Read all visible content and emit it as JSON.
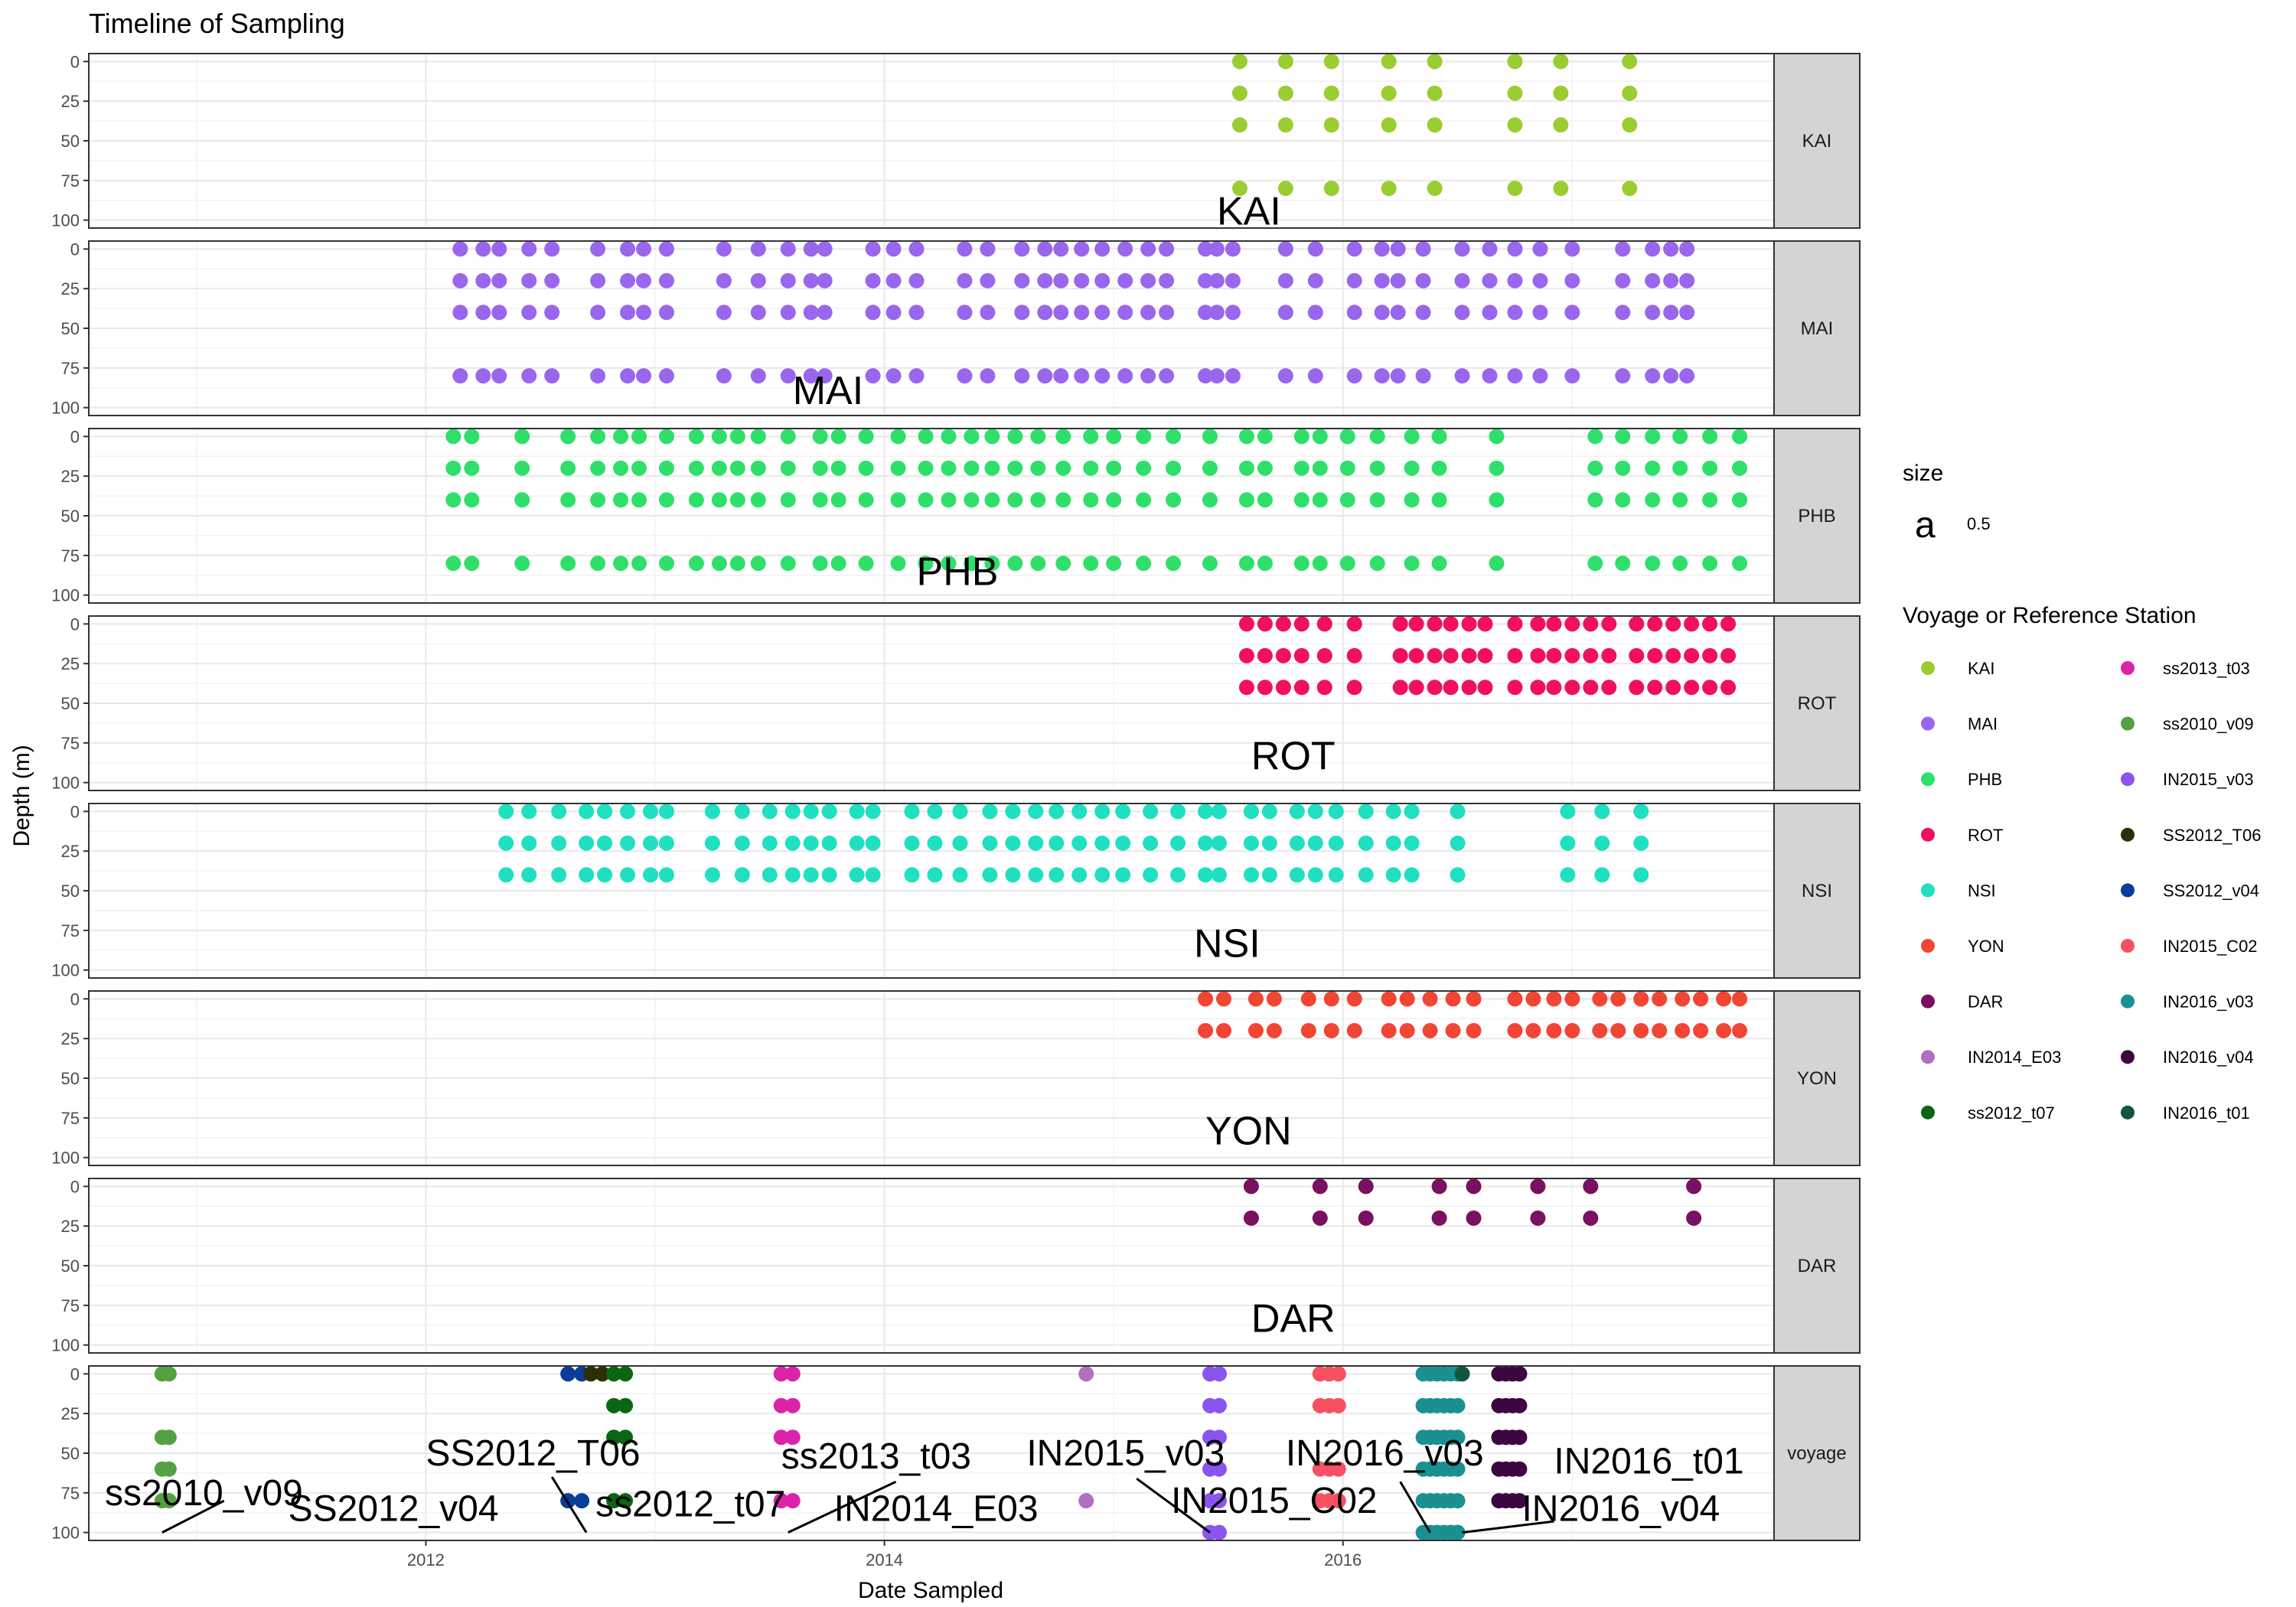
{
  "chart_data": {
    "type": "scatter",
    "title": "Timeline of Sampling",
    "xlabel": "Date Sampled",
    "ylabel": "Depth (m)",
    "xlim": [
      2010.53,
      2017.88
    ],
    "x_ticks": [
      2012,
      2014,
      2016
    ],
    "ylim": [
      105,
      -5
    ],
    "y_ticks": [
      0,
      25,
      50,
      75,
      100
    ],
    "grid": true,
    "legend_position": "right",
    "size_legend": {
      "title": "size",
      "key_glyph": "a",
      "value": "0.5"
    },
    "color_legend_title": "Voyage or Reference Station",
    "colors": {
      "KAI": "#9ACD32",
      "MAI": "#9966EE",
      "PHB": "#2EE06A",
      "ROT": "#F0105E",
      "NSI": "#1FE0C0",
      "YON": "#F24533",
      "DAR": "#7A1060",
      "IN2014_E03": "#B070C0",
      "ss2012_t07": "#0A6612",
      "ss2013_t03": "#DD22AA",
      "ss2010_v09": "#55A040",
      "IN2015_v03": "#8A55EE",
      "SS2012_T06": "#2E2E06",
      "SS2012_v04": "#0B3C9A",
      "IN2015_C02": "#F75062",
      "IN2016_v03": "#1A9090",
      "IN2016_v04": "#3E0640",
      "IN2016_t01": "#125540"
    },
    "legend_col1": [
      "KAI",
      "MAI",
      "PHB",
      "ROT",
      "NSI",
      "YON",
      "DAR",
      "IN2014_E03",
      "ss2012_t07"
    ],
    "legend_col2": [
      "ss2013_t03",
      "ss2010_v09",
      "IN2015_v03",
      "SS2012_T06",
      "SS2012_v04",
      "IN2015_C02",
      "IN2016_v03",
      "IN2016_v04",
      "IN2016_t01"
    ],
    "panels": [
      {
        "strip": "KAI",
        "label": "KAI",
        "label_at": [
          2015.45,
          95
        ],
        "series": [
          {
            "group": "KAI",
            "dates": [
              2015.55,
              2015.75,
              2015.95,
              2016.2,
              2016.4,
              2016.75,
              2016.95,
              2017.25
            ],
            "depths": [
              0,
              20,
              40,
              80
            ]
          }
        ]
      },
      {
        "strip": "MAI",
        "label": "MAI",
        "label_at": [
          2013.6,
          90
        ],
        "series": [
          {
            "group": "MAI",
            "dates": [
              2012.15,
              2012.25,
              2012.32,
              2012.45,
              2012.55,
              2012.75,
              2012.88,
              2012.95,
              2013.05,
              2013.3,
              2013.45,
              2013.58,
              2013.68,
              2013.74,
              2013.95,
              2014.04,
              2014.14,
              2014.35,
              2014.45,
              2014.6,
              2014.7,
              2014.77,
              2014.86,
              2014.95,
              2015.05,
              2015.15,
              2015.23,
              2015.4,
              2015.45,
              2015.52,
              2015.75,
              2015.88,
              2016.05,
              2016.17,
              2016.24,
              2016.35,
              2016.52,
              2016.64,
              2016.75,
              2016.86,
              2017.0,
              2017.22,
              2017.35,
              2017.43,
              2017.5
            ],
            "depths": [
              0,
              20,
              40,
              80
            ]
          }
        ]
      },
      {
        "strip": "PHB",
        "label": "PHB",
        "label_at": [
          2014.14,
          86
        ],
        "series": [
          {
            "group": "PHB",
            "dates": [
              2012.12,
              2012.2,
              2012.42,
              2012.62,
              2012.75,
              2012.85,
              2012.93,
              2013.05,
              2013.18,
              2013.28,
              2013.36,
              2013.45,
              2013.58,
              2013.72,
              2013.8,
              2013.92,
              2014.06,
              2014.18,
              2014.28,
              2014.38,
              2014.47,
              2014.57,
              2014.67,
              2014.78,
              2014.9,
              2015.0,
              2015.13,
              2015.26,
              2015.42,
              2015.58,
              2015.66,
              2015.82,
              2015.9,
              2016.02,
              2016.15,
              2016.3,
              2016.42,
              2016.67,
              2017.1,
              2017.22,
              2017.35,
              2017.47,
              2017.6,
              2017.73
            ],
            "depths": [
              0,
              20,
              40,
              80
            ]
          }
        ]
      },
      {
        "strip": "ROT",
        "label": "ROT",
        "label_at": [
          2015.6,
          84
        ],
        "series": [
          {
            "group": "ROT",
            "dates": [
              2015.58,
              2015.66,
              2015.74,
              2015.82,
              2015.92,
              2016.05,
              2016.25,
              2016.32,
              2016.4,
              2016.47,
              2016.55,
              2016.62,
              2016.75,
              2016.85,
              2016.92,
              2017.0,
              2017.08,
              2017.16,
              2017.28,
              2017.36,
              2017.44,
              2017.52,
              2017.6,
              2017.68
            ],
            "depths": [
              0,
              20,
              40
            ]
          }
        ]
      },
      {
        "strip": "NSI",
        "label": "NSI",
        "label_at": [
          2015.35,
          84
        ],
        "series": [
          {
            "group": "NSI",
            "dates": [
              2012.35,
              2012.45,
              2012.58,
              2012.7,
              2012.78,
              2012.88,
              2012.98,
              2013.05,
              2013.25,
              2013.38,
              2013.5,
              2013.6,
              2013.68,
              2013.76,
              2013.88,
              2013.95,
              2014.12,
              2014.22,
              2014.33,
              2014.46,
              2014.56,
              2014.66,
              2014.75,
              2014.85,
              2014.95,
              2015.04,
              2015.16,
              2015.28,
              2015.4,
              2015.46,
              2015.6,
              2015.68,
              2015.8,
              2015.88,
              2015.97,
              2016.1,
              2016.22,
              2016.3,
              2016.5,
              2016.98,
              2017.13,
              2017.3
            ],
            "depths": [
              0,
              20,
              40
            ]
          }
        ]
      },
      {
        "strip": "YON",
        "label": "YON",
        "label_at": [
          2015.4,
          84
        ],
        "series": [
          {
            "group": "YON",
            "dates": [
              2015.4,
              2015.48,
              2015.62,
              2015.7,
              2015.85,
              2015.95,
              2016.05,
              2016.2,
              2016.28,
              2016.38,
              2016.48,
              2016.57,
              2016.75,
              2016.83,
              2016.92,
              2017.0,
              2017.12,
              2017.2,
              2017.3,
              2017.38,
              2017.48,
              2017.56,
              2017.66,
              2017.73
            ],
            "depths": [
              0,
              20
            ]
          }
        ]
      },
      {
        "strip": "DAR",
        "label": "DAR",
        "label_at": [
          2015.6,
          84
        ],
        "series": [
          {
            "group": "DAR",
            "dates": [
              2015.6,
              2015.9,
              2016.1,
              2016.42,
              2016.57,
              2016.85,
              2017.08,
              2017.53
            ],
            "depths": [
              0,
              20
            ]
          }
        ]
      },
      {
        "strip": "voyage",
        "label": "",
        "series": [
          {
            "group": "ss2010_v09",
            "dates": [
              2010.85,
              2010.88
            ],
            "depths": [
              0,
              40,
              60,
              80
            ]
          },
          {
            "group": "SS2012_v04",
            "dates": [
              2012.62,
              2012.68
            ],
            "depths": [
              0,
              80
            ]
          },
          {
            "group": "SS2012_T06",
            "dates": [
              2012.72,
              2012.77
            ],
            "depths": [
              0
            ]
          },
          {
            "group": "ss2012_t07",
            "dates": [
              2012.82,
              2012.87
            ],
            "depths": [
              0,
              20,
              40,
              80
            ]
          },
          {
            "group": "ss2013_t03",
            "dates": [
              2013.55,
              2013.6
            ],
            "depths": [
              0,
              20,
              40,
              80
            ]
          },
          {
            "group": "IN2014_E03",
            "dates": [
              2014.88
            ],
            "depths": [
              0,
              80
            ]
          },
          {
            "group": "IN2015_v03",
            "dates": [
              2015.42,
              2015.46
            ],
            "depths": [
              0,
              20,
              40,
              60,
              80,
              100
            ]
          },
          {
            "group": "IN2015_C02",
            "dates": [
              2015.9,
              2015.94,
              2015.98
            ],
            "depths": [
              0,
              20,
              60,
              80
            ]
          },
          {
            "group": "IN2016_v03",
            "dates": [
              2016.35,
              2016.38,
              2016.41,
              2016.44,
              2016.47,
              2016.5
            ],
            "depths": [
              0,
              20,
              40,
              60,
              80,
              100
            ]
          },
          {
            "group": "IN2016_t01",
            "dates": [
              2016.52
            ],
            "depths": [
              0
            ]
          },
          {
            "group": "IN2016_v04",
            "dates": [
              2016.68,
              2016.71,
              2016.74,
              2016.77
            ],
            "depths": [
              0,
              20,
              40,
              60,
              80
            ]
          }
        ],
        "annotations": [
          {
            "text": "ss2010_v09",
            "at": [
              2010.6,
              75
            ],
            "pointer": [
              [
                2011.12,
                80
              ],
              [
                2010.85,
                100
              ]
            ]
          },
          {
            "text": "SS2012_T06",
            "at": [
              2012.0,
              50
            ],
            "pointer": [
              [
                2012.55,
                65
              ],
              [
                2012.7,
                100
              ]
            ]
          },
          {
            "text": "SS2012_v04",
            "at": [
              2011.4,
              85
            ],
            "pointer": []
          },
          {
            "text": "ss2012_t07",
            "at": [
              2012.74,
              82
            ],
            "pointer": []
          },
          {
            "text": "ss2013_t03",
            "at": [
              2013.55,
              52
            ],
            "pointer": [
              [
                2014.05,
                68
              ],
              [
                2013.58,
                100
              ]
            ]
          },
          {
            "text": "IN2014_E03",
            "at": [
              2013.78,
              85
            ],
            "pointer": []
          },
          {
            "text": "IN2015_v03",
            "at": [
              2014.62,
              50
            ],
            "pointer": [
              [
                2015.1,
                66
              ],
              [
                2015.42,
                100
              ]
            ]
          },
          {
            "text": "IN2015_C02",
            "at": [
              2015.25,
              80
            ],
            "pointer": []
          },
          {
            "text": "IN2016_v03",
            "at": [
              2015.75,
              50
            ],
            "pointer": [
              [
                2016.25,
                68
              ],
              [
                2016.38,
                100
              ]
            ]
          },
          {
            "text": "IN2016_t01",
            "at": [
              2016.92,
              55
            ],
            "pointer": [
              [
                2016.92,
                93
              ],
              [
                2016.52,
                100
              ]
            ]
          },
          {
            "text": "IN2016_v04",
            "at": [
              2016.78,
              85
            ],
            "pointer": []
          }
        ]
      }
    ]
  }
}
